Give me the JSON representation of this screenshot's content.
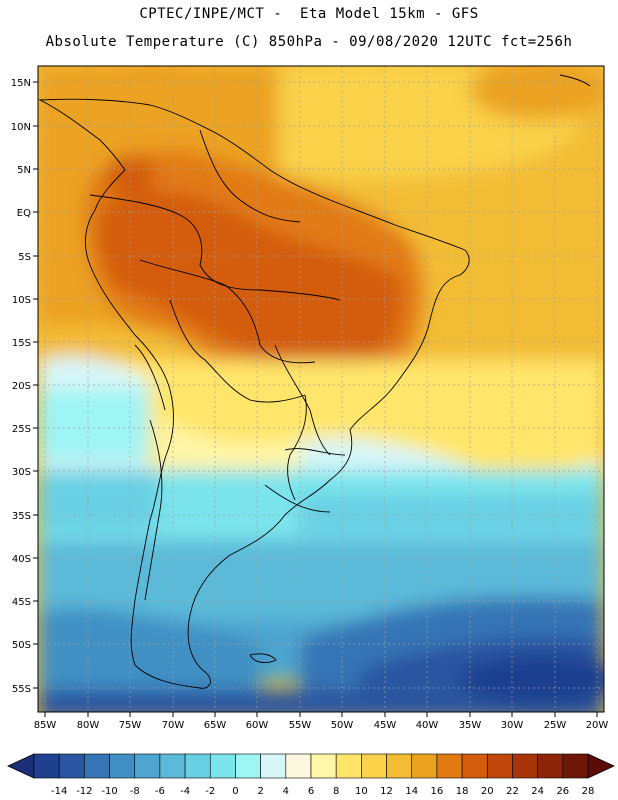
{
  "header": {
    "line1": "CPTEC/INPE/MCT -  Eta Model 15km - GFS",
    "line2": "Absolute Temperature (C) 850hPa - 09/08/2020 12UTC fct=256h"
  },
  "axes": {
    "lat_labels": [
      "15N",
      "10N",
      "5N",
      "EQ",
      "5S",
      "10S",
      "15S",
      "20S",
      "25S",
      "30S",
      "35S",
      "40S",
      "45S",
      "50S",
      "55S"
    ],
    "lon_labels": [
      "85W",
      "80W",
      "75W",
      "70W",
      "65W",
      "60W",
      "55W",
      "50W",
      "45W",
      "40W",
      "35W",
      "30W",
      "25W",
      "20W"
    ]
  },
  "colorbar": {
    "tick_labels": [
      "-14",
      "-12",
      "-10",
      "-8",
      "-6",
      "-4",
      "-2",
      "0",
      "2",
      "4",
      "6",
      "8",
      "10",
      "12",
      "14",
      "16",
      "18",
      "20",
      "22",
      "24",
      "26",
      "28"
    ],
    "colors": [
      "#1f3f8f",
      "#2a55a0",
      "#3575b5",
      "#4190c4",
      "#4ea5cf",
      "#5bbad9",
      "#69d0e3",
      "#7ce4ec",
      "#9ff4f4",
      "#d8f6f8",
      "#fff8e0",
      "#fff6a8",
      "#ffe66a",
      "#f9d24a",
      "#f3bc34",
      "#eca221",
      "#e27a14",
      "#d35c0d",
      "#bf470b",
      "#a8350a",
      "#8c2508",
      "#6e1607"
    ],
    "low_arrow_color": "#1a2f78",
    "high_arrow_color": "#5a0c05"
  },
  "legend_fields": {
    "palette_name": "temperature-fill"
  }
}
